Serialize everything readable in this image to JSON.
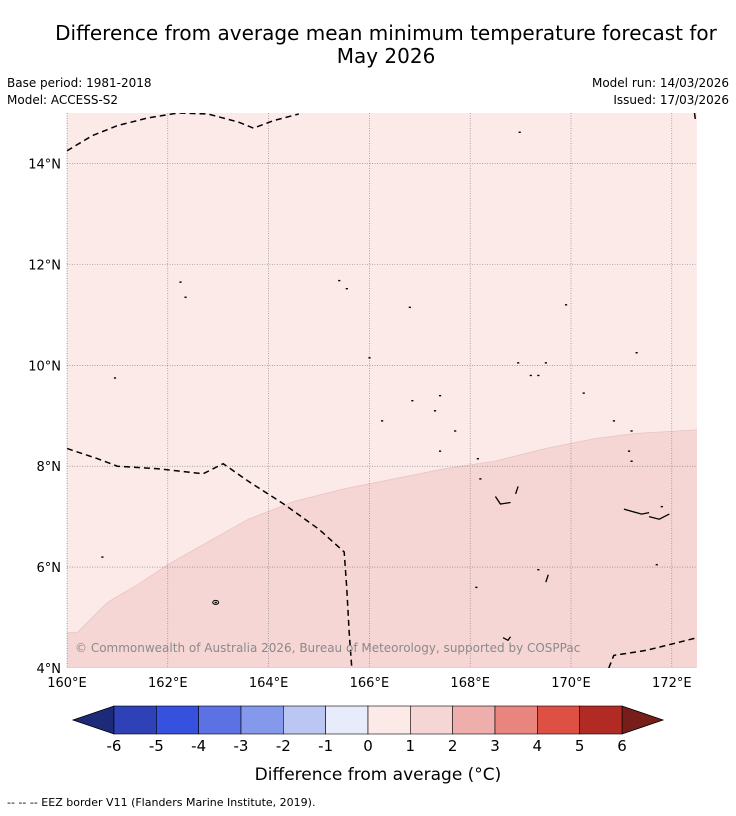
{
  "title": {
    "line1": "Difference from average mean minimum temperature forecast for",
    "line2": "May 2026"
  },
  "meta": {
    "base_period": "Base period: 1981-2018",
    "model": "Model: ACCESS-S2",
    "model_run": "Model run: 14/03/2026",
    "issued": "Issued: 17/03/2026"
  },
  "map": {
    "lon_range": [
      160,
      172.5
    ],
    "lat_range": [
      4,
      15
    ],
    "lon_ticks": [
      160,
      162,
      164,
      166,
      168,
      170,
      172
    ],
    "lon_tick_labels": [
      "160°E",
      "162°E",
      "164°E",
      "166°E",
      "168°E",
      "170°E",
      "172°E"
    ],
    "lat_ticks": [
      4,
      6,
      8,
      10,
      12,
      14
    ],
    "lat_tick_labels": [
      "4°N",
      "6°N",
      "8°N",
      "10°N",
      "12°N",
      "14°N"
    ],
    "copyright": "© Commonwealth of Australia 2026, Bureau of Meteorology, supported by COSPPac",
    "base_fill": "#fbeae8",
    "warm_fill": "#f5d6d4",
    "zone_boundary": [
      [
        160,
        4.7
      ],
      [
        160.2,
        4.7
      ],
      [
        160.8,
        5.3
      ],
      [
        161.4,
        5.65
      ],
      [
        162,
        6.05
      ],
      [
        162.8,
        6.5
      ],
      [
        163.6,
        6.95
      ],
      [
        164.5,
        7.3
      ],
      [
        165.5,
        7.55
      ],
      [
        166.5,
        7.75
      ],
      [
        167.5,
        7.95
      ],
      [
        168.5,
        8.1
      ],
      [
        169.5,
        8.35
      ],
      [
        170.5,
        8.55
      ],
      [
        171.3,
        8.65
      ],
      [
        172.5,
        8.72
      ]
    ],
    "eez_borders": [
      [
        [
          160,
          14.25
        ],
        [
          160.5,
          14.55
        ],
        [
          161,
          14.75
        ],
        [
          161.6,
          14.9
        ],
        [
          162.2,
          15.0
        ],
        [
          162.8,
          14.98
        ],
        [
          163.4,
          14.82
        ],
        [
          163.7,
          14.7
        ],
        [
          164.1,
          14.85
        ],
        [
          164.6,
          14.98
        ]
      ],
      [
        [
          160,
          8.35
        ],
        [
          160.6,
          8.15
        ],
        [
          161,
          8.0
        ],
        [
          161.8,
          7.95
        ],
        [
          162.7,
          7.85
        ],
        [
          163.1,
          8.05
        ],
        [
          163.6,
          7.7
        ],
        [
          164.3,
          7.25
        ],
        [
          165,
          6.75
        ],
        [
          165.5,
          6.3
        ],
        [
          165.55,
          5.6
        ],
        [
          165.6,
          4.7
        ],
        [
          165.65,
          4.0
        ]
      ],
      [
        [
          170.75,
          4.0
        ],
        [
          170.85,
          4.25
        ],
        [
          171.5,
          4.35
        ],
        [
          172.1,
          4.5
        ],
        [
          172.5,
          4.6
        ]
      ],
      [
        [
          172.45,
          15.0
        ],
        [
          172.47,
          14.85
        ]
      ]
    ],
    "islands": [
      [
        168.98,
        14.62
      ],
      [
        162.25,
        11.65
      ],
      [
        162.35,
        11.35
      ],
      [
        165.4,
        11.68
      ],
      [
        165.55,
        11.52
      ],
      [
        166.8,
        11.15
      ],
      [
        169.9,
        11.2
      ],
      [
        160.95,
        9.75
      ],
      [
        166.0,
        10.15
      ],
      [
        171.3,
        10.25
      ],
      [
        169.5,
        10.05
      ],
      [
        169.2,
        9.8
      ],
      [
        168.95,
        10.05
      ],
      [
        169.35,
        9.8
      ],
      [
        170.25,
        9.45
      ],
      [
        167.4,
        9.4
      ],
      [
        166.85,
        9.3
      ],
      [
        166.25,
        8.9
      ],
      [
        167.3,
        9.1
      ],
      [
        170.85,
        8.9
      ],
      [
        167.7,
        8.7
      ],
      [
        167.4,
        8.3
      ],
      [
        171.2,
        8.7
      ],
      [
        171.15,
        8.3
      ],
      [
        171.2,
        8.1
      ],
      [
        168.15,
        8.15
      ],
      [
        168.2,
        7.75
      ],
      [
        160.7,
        6.2
      ],
      [
        162.95,
        5.3
      ],
      [
        168.12,
        5.6
      ],
      [
        169.35,
        5.95
      ],
      [
        171.7,
        6.05
      ],
      [
        171.8,
        7.2
      ]
    ],
    "island_shapes": [
      [
        [
          168.5,
          7.4
        ],
        [
          168.6,
          7.25
        ],
        [
          168.8,
          7.28
        ]
      ],
      [
        [
          168.95,
          7.6
        ],
        [
          168.9,
          7.45
        ]
      ],
      [
        [
          171.05,
          7.15
        ],
        [
          171.4,
          7.05
        ],
        [
          171.55,
          7.08
        ]
      ],
      [
        [
          171.55,
          7.0
        ],
        [
          171.75,
          6.95
        ],
        [
          171.95,
          7.05
        ]
      ],
      [
        [
          169.55,
          5.85
        ],
        [
          169.5,
          5.7
        ]
      ],
      [
        [
          168.65,
          4.6
        ],
        [
          168.75,
          4.55
        ],
        [
          168.8,
          4.62
        ]
      ]
    ]
  },
  "colorbar": {
    "levels": [
      -6,
      -5,
      -4,
      -3,
      -2,
      -1,
      0,
      1,
      2,
      3,
      4,
      5,
      6
    ],
    "level_labels": [
      "-6",
      "-5",
      "-4",
      "-3",
      "-2",
      "-1",
      "0",
      "1",
      "2",
      "3",
      "4",
      "5",
      "6"
    ],
    "colors": [
      "#2f41b6",
      "#3651de",
      "#5b71e4",
      "#8599ec",
      "#bcc6f3",
      "#e8ecfa",
      "#fbeae8",
      "#f5d6d4",
      "#eeaeab",
      "#e8857e",
      "#de5044",
      "#b12b24"
    ],
    "under_color": "#1c2a79",
    "over_color": "#771e1a",
    "label": "Difference from average (°C)"
  },
  "footnote": "-- -- -- EEZ border V11 (Flanders Marine Institute, 2019)."
}
